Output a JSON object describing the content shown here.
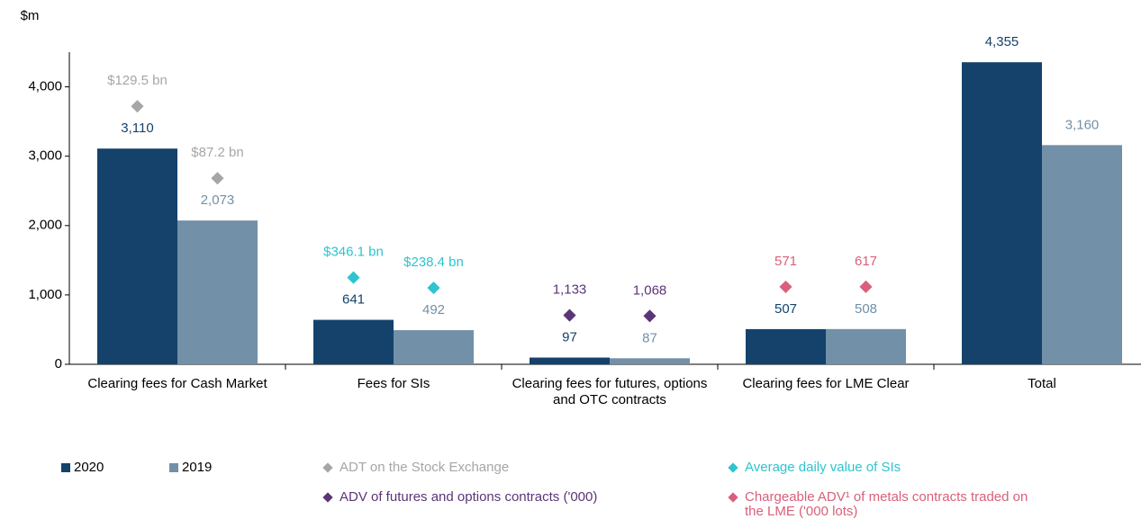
{
  "chart_data": {
    "type": "bar",
    "y_label": "$m",
    "categories": [
      "Clearing fees for Cash Market",
      "Fees for SIs",
      "Clearing fees for futures, options and OTC contracts",
      "Clearing fees for LME Clear",
      "Total"
    ],
    "series": [
      {
        "name": "2020",
        "color": "#14426b",
        "values": [
          3110,
          641,
          97,
          507,
          4355
        ],
        "value_labels": [
          "3,110",
          "641",
          "97",
          "507",
          "4,355"
        ]
      },
      {
        "name": "2019",
        "color": "#7290a8",
        "values": [
          2073,
          492,
          87,
          508,
          3160
        ],
        "value_labels": [
          "2,073",
          "492",
          "87",
          "508",
          "3,160"
        ]
      }
    ],
    "indicators": [
      {
        "name": "ADT on the Stock Exchange",
        "color": "#a6a6a6",
        "category": "Clearing fees for Cash Market",
        "values": [
          129.5,
          87.2
        ],
        "value_labels": [
          "$129.5 bn",
          "$87.2 bn"
        ]
      },
      {
        "name": "Average daily value of SIs",
        "color": "#2ec4d0",
        "category": "Fees for SIs",
        "values": [
          346.1,
          238.4
        ],
        "value_labels": [
          "$346.1 bn",
          "$238.4 bn"
        ]
      },
      {
        "name": "ADV of futures and options contracts ('000)",
        "color": "#5b3577",
        "category": "Clearing fees for futures, options and OTC contracts",
        "values": [
          1133,
          1068
        ],
        "value_labels": [
          "1,133",
          "1,068"
        ]
      },
      {
        "name": "Chargeable ADV¹ of metals contracts traded on the LME ('000 lots)",
        "color": "#d9607a",
        "category": "Clearing fees for LME Clear",
        "values": [
          571,
          617
        ]
      }
    ],
    "ylim": [
      0,
      4500
    ],
    "yticks": [
      0,
      {
        "value": 1000,
        "label": "1,000"
      },
      {
        "value": 2000,
        "label": "2,000"
      },
      {
        "value": 3000,
        "label": "3,000"
      },
      {
        "value": 4000,
        "label": "4,000"
      }
    ]
  }
}
